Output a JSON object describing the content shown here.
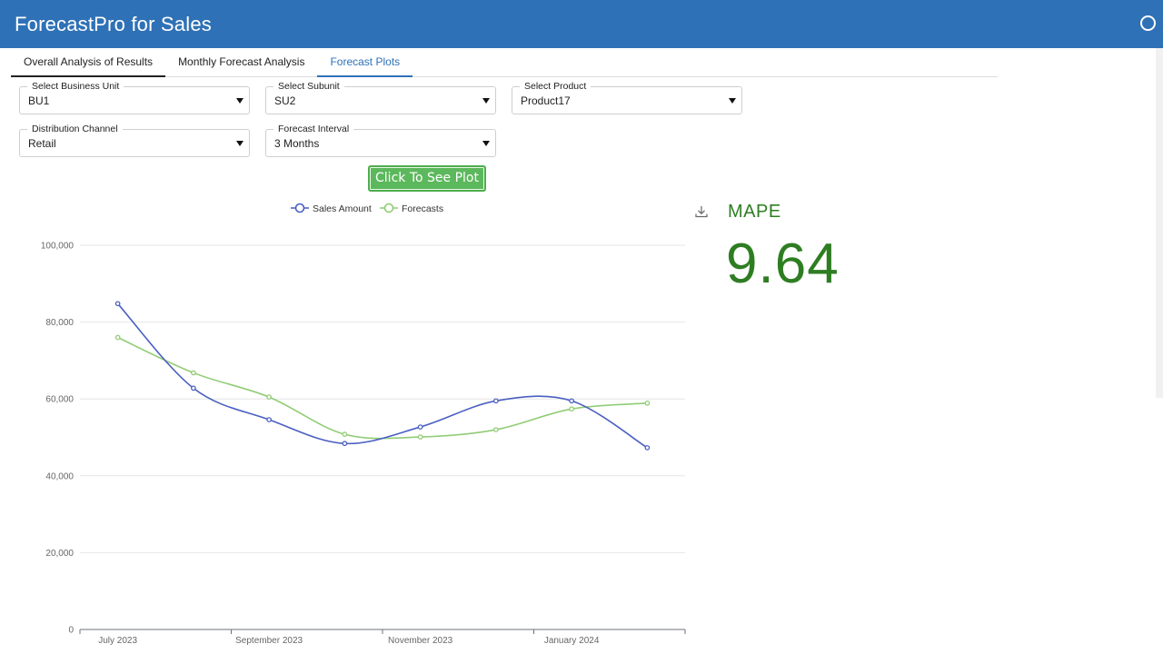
{
  "header": {
    "title": "ForecastPro for Sales"
  },
  "tabs": [
    {
      "label": "Overall Analysis of Results"
    },
    {
      "label": "Monthly Forecast Analysis"
    },
    {
      "label": "Forecast Plots"
    }
  ],
  "filters": {
    "business_unit": {
      "label": "Select Business Unit",
      "value": "BU1"
    },
    "subunit": {
      "label": "Select Subunit",
      "value": "SU2"
    },
    "product": {
      "label": "Select Product",
      "value": "Product17"
    },
    "channel": {
      "label": "Distribution Channel",
      "value": "Retail"
    },
    "interval": {
      "label": "Forecast Interval",
      "value": "3 Months"
    }
  },
  "plot_button": {
    "label": "Click To See Plot"
  },
  "metric": {
    "label": "MAPE",
    "value": "9.64"
  },
  "chart_data": {
    "type": "line",
    "x": [
      "2023-07",
      "2023-08",
      "2023-09",
      "2023-10",
      "2023-11",
      "2023-12",
      "2024-01",
      "2024-02"
    ],
    "x_tick_labels": [
      "July 2023",
      "September 2023",
      "November 2023",
      "January 2024"
    ],
    "y_tick_labels": [
      "0",
      "20,000",
      "40,000",
      "60,000",
      "80,000",
      "100,000"
    ],
    "ylim": [
      0,
      100000
    ],
    "legend_position": "top-center",
    "grid": true,
    "series": [
      {
        "name": "Sales Amount",
        "color": "#4a5fc1",
        "values": [
          84800,
          62800,
          54600,
          48400,
          52700,
          59500,
          59500,
          47300
        ]
      },
      {
        "name": "Forecasts",
        "color": "#91cc75",
        "values": [
          76000,
          66800,
          60500,
          50800,
          50100,
          52000,
          57400,
          58900
        ]
      }
    ]
  }
}
